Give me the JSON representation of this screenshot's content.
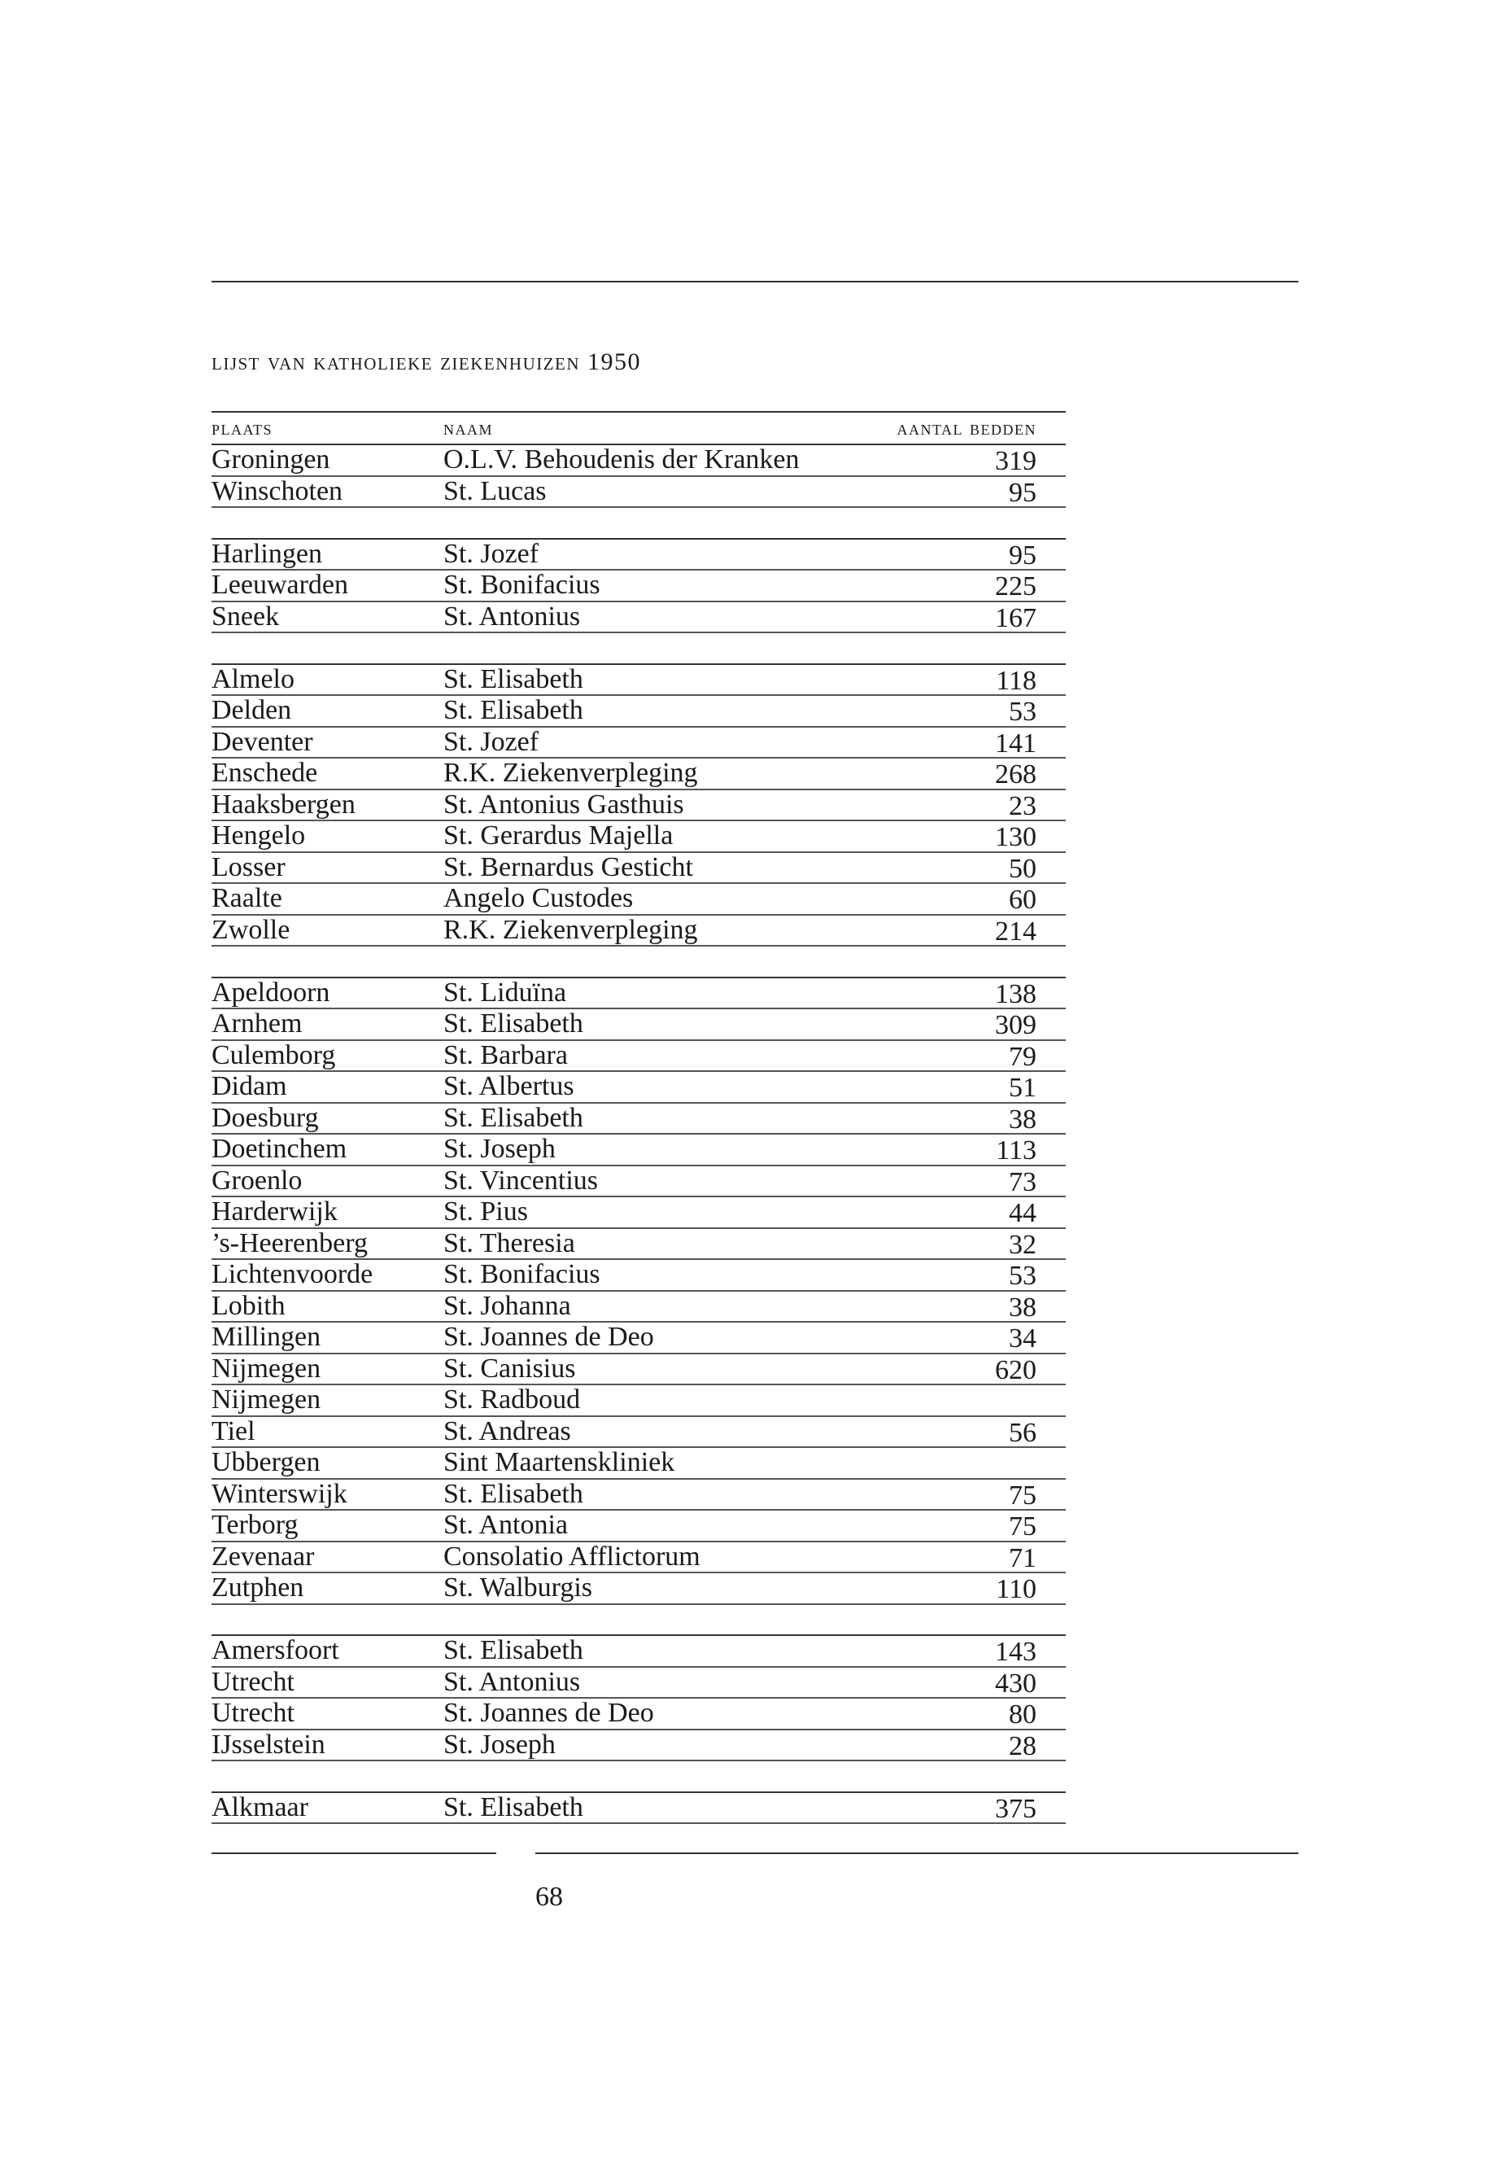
{
  "title": "Lijst van katholieke ziekenhuizen 1950",
  "columns": {
    "plaats": "Plaats",
    "naam": "Naam",
    "bedden": "Aantal bedden"
  },
  "groups": [
    [
      [
        "Groningen",
        "O.L.V. Behoudenis der Kranken",
        "319"
      ],
      [
        "Winschoten",
        "St. Lucas",
        "95"
      ]
    ],
    [
      [
        "Harlingen",
        "St. Jozef",
        "95"
      ],
      [
        "Leeuwarden",
        "St. Bonifacius",
        "225"
      ],
      [
        "Sneek",
        "St. Antonius",
        "167"
      ]
    ],
    [
      [
        "Almelo",
        "St. Elisabeth",
        "118"
      ],
      [
        "Delden",
        "St. Elisabeth",
        "53"
      ],
      [
        "Deventer",
        "St. Jozef",
        "141"
      ],
      [
        "Enschede",
        "R.K. Ziekenverpleging",
        "268"
      ],
      [
        "Haaksbergen",
        "St. Antonius Gasthuis",
        "23"
      ],
      [
        "Hengelo",
        "St. Gerardus Majella",
        "130"
      ],
      [
        "Losser",
        "St. Bernardus Gesticht",
        "50"
      ],
      [
        "Raalte",
        "Angelo Custodes",
        "60"
      ],
      [
        "Zwolle",
        "R.K. Ziekenverpleging",
        "214"
      ]
    ],
    [
      [
        "Apeldoorn",
        "St. Liduïna",
        "138"
      ],
      [
        "Arnhem",
        "St. Elisabeth",
        "309"
      ],
      [
        "Culemborg",
        "St. Barbara",
        "79"
      ],
      [
        "Didam",
        "St. Albertus",
        "51"
      ],
      [
        "Doesburg",
        "St. Elisabeth",
        "38"
      ],
      [
        "Doetinchem",
        "St. Joseph",
        "113"
      ],
      [
        "Groenlo",
        "St. Vincentius",
        "73"
      ],
      [
        "Harderwijk",
        "St. Pius",
        "44"
      ],
      [
        "’s-Heerenberg",
        "St. Theresia",
        "32"
      ],
      [
        "Lichtenvoorde",
        "St. Bonifacius",
        "53"
      ],
      [
        "Lobith",
        "St. Johanna",
        "38"
      ],
      [
        "Millingen",
        "St. Joannes de Deo",
        "34"
      ],
      [
        "Nijmegen",
        "St. Canisius",
        "620"
      ],
      [
        "Nijmegen",
        "St. Radboud",
        ""
      ],
      [
        "Tiel",
        "St. Andreas",
        "56"
      ],
      [
        "Ubbergen",
        "Sint Maartenskliniek",
        ""
      ],
      [
        "Winterswijk",
        "St. Elisabeth",
        "75"
      ],
      [
        "Terborg",
        "St. Antonia",
        "75"
      ],
      [
        "Zevenaar",
        "Consolatio Afflictorum",
        "71"
      ],
      [
        "Zutphen",
        "St. Walburgis",
        "110"
      ]
    ],
    [
      [
        "Amersfoort",
        "St. Elisabeth",
        "143"
      ],
      [
        "Utrecht",
        "St. Antonius",
        "430"
      ],
      [
        "Utrecht",
        "St. Joannes de Deo",
        "80"
      ],
      [
        "IJsselstein",
        "St. Joseph",
        "28"
      ]
    ],
    [
      [
        "Alkmaar",
        "St. Elisabeth",
        "375"
      ]
    ]
  ],
  "page_number": "68"
}
